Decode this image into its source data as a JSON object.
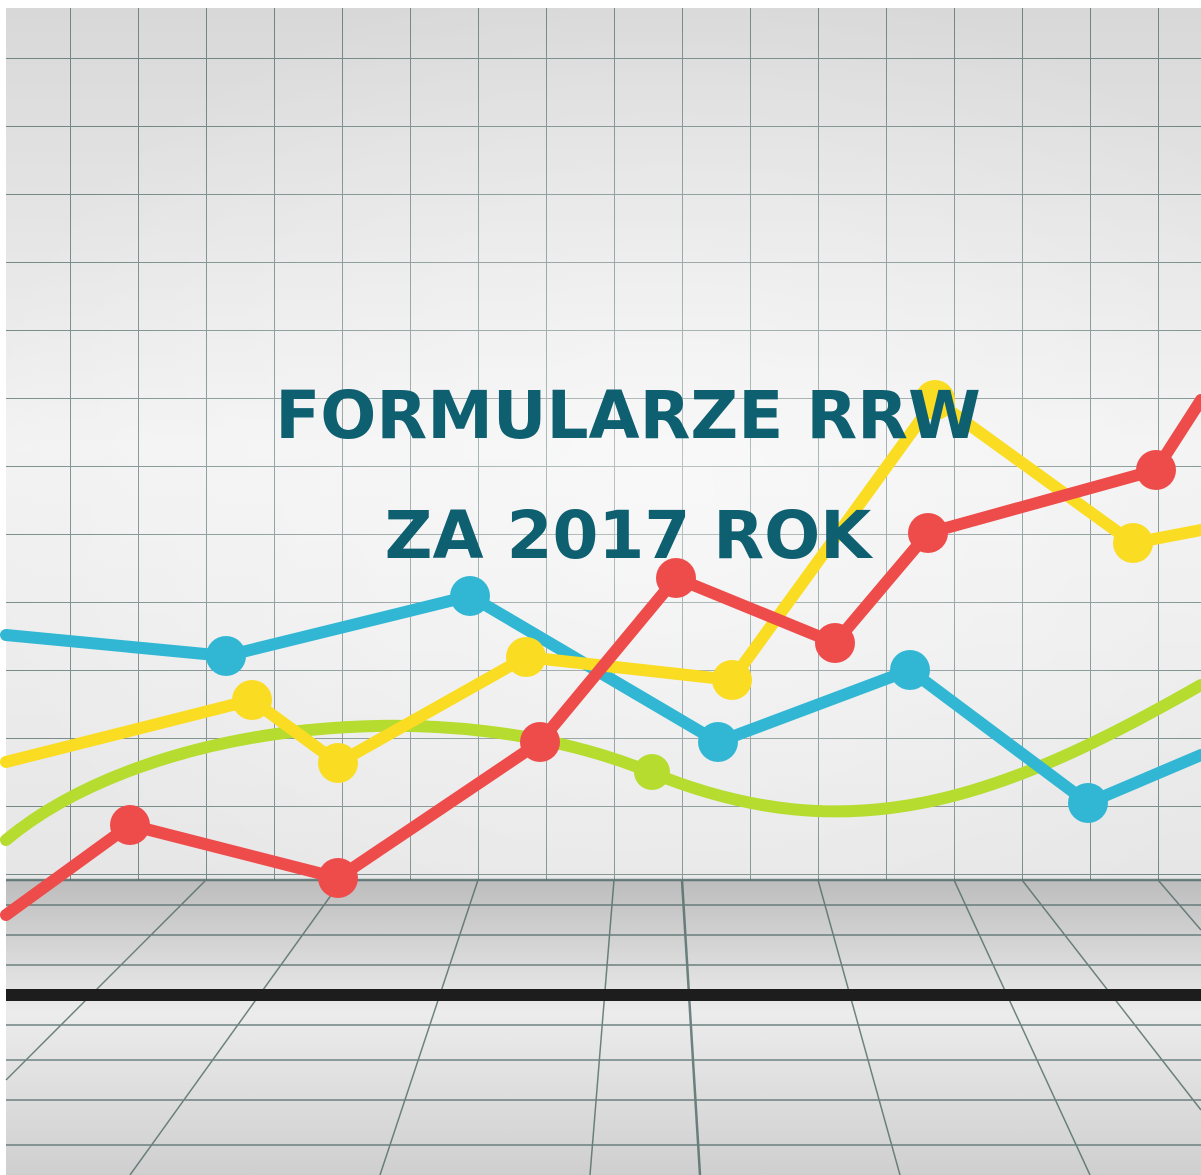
{
  "title": {
    "lines": [
      "FORMULARZE RRW",
      "ZA 2017 ROK"
    ]
  }
}
